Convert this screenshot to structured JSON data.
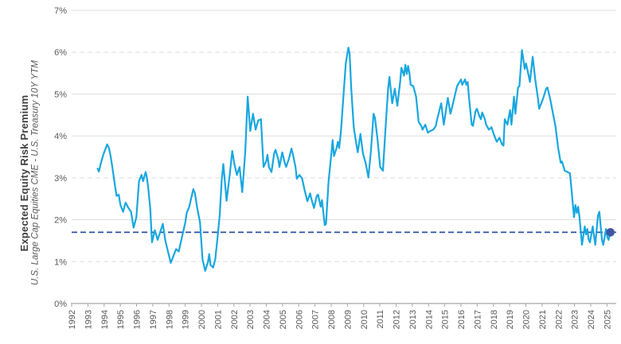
{
  "chart_data": {
    "type": "line",
    "title": "Expected Equity Risk Premium",
    "subtitle": "U.S. Large Cap Equities CME - U.S. Treasury 10Y YTM",
    "xlabel": "",
    "ylabel": "Expected Equity Risk Premium",
    "xlim": [
      1992,
      2025.57
    ],
    "ylim": [
      0,
      7
    ],
    "grid": "horizontal",
    "y_ticks": [
      0,
      1,
      2,
      3,
      4,
      5,
      6,
      7
    ],
    "y_tick_suffix": "%",
    "y_ticks_dashed": [
      1,
      3,
      6
    ],
    "x_ticks": [
      1992,
      1993,
      1994,
      1995,
      1996,
      1997,
      1998,
      1999,
      2000,
      2001,
      2002,
      2003,
      2004,
      2005,
      2006,
      2007,
      2008,
      2009,
      2010,
      2011,
      2012,
      2013,
      2014,
      2015,
      2016,
      2017,
      2018,
      2019,
      2020,
      2021,
      2022,
      2023,
      2024,
      2025
    ],
    "legend_position": "none",
    "colors": {
      "series": "#18a7e0",
      "reference": "#2b50a1",
      "marker": "#3f55a5",
      "grid": "#dcdddf",
      "axis": "#a6a8ab",
      "tick_text": "#58595b",
      "title_text": "#414042"
    },
    "reference_line": {
      "value": 1.7,
      "style": "dashed",
      "color": "#2b50a1"
    },
    "end_marker": {
      "x": 2025.21,
      "y": 1.7,
      "color": "#3f55a5"
    },
    "series": [
      {
        "name": "Expected Equity Risk Premium (U.S. Large Cap Equities CME - U.S. Treasury 10Y YTM)",
        "color": "#18a7e0",
        "points": [
          [
            1993.6,
            3.22
          ],
          [
            1993.68,
            3.15
          ],
          [
            1993.8,
            3.35
          ],
          [
            1993.95,
            3.55
          ],
          [
            1994.19,
            3.8
          ],
          [
            1994.3,
            3.71
          ],
          [
            1994.4,
            3.52
          ],
          [
            1994.52,
            3.23
          ],
          [
            1994.68,
            2.79
          ],
          [
            1994.77,
            2.57
          ],
          [
            1994.9,
            2.6
          ],
          [
            1995.01,
            2.35
          ],
          [
            1995.17,
            2.19
          ],
          [
            1995.33,
            2.41
          ],
          [
            1995.5,
            2.28
          ],
          [
            1995.66,
            2.19
          ],
          [
            1995.74,
            2.0
          ],
          [
            1995.82,
            1.81
          ],
          [
            1995.99,
            2.06
          ],
          [
            1996.15,
            2.92
          ],
          [
            1996.31,
            3.07
          ],
          [
            1996.4,
            2.92
          ],
          [
            1996.56,
            3.14
          ],
          [
            1996.64,
            3.01
          ],
          [
            1996.72,
            2.76
          ],
          [
            1996.85,
            2.25
          ],
          [
            1996.95,
            1.46
          ],
          [
            1997.13,
            1.75
          ],
          [
            1997.3,
            1.52
          ],
          [
            1997.62,
            1.9
          ],
          [
            1997.78,
            1.49
          ],
          [
            1998.11,
            0.97
          ],
          [
            1998.44,
            1.3
          ],
          [
            1998.6,
            1.24
          ],
          [
            1999.01,
            1.94
          ],
          [
            1999.09,
            2.16
          ],
          [
            1999.25,
            2.31
          ],
          [
            1999.5,
            2.73
          ],
          [
            1999.6,
            2.63
          ],
          [
            1999.74,
            2.28
          ],
          [
            1999.91,
            1.94
          ],
          [
            2000.07,
            1.05
          ],
          [
            2000.23,
            0.78
          ],
          [
            2000.4,
            0.99
          ],
          [
            2000.48,
            1.18
          ],
          [
            2000.56,
            0.92
          ],
          [
            2000.72,
            0.86
          ],
          [
            2000.85,
            1.05
          ],
          [
            2000.97,
            1.49
          ],
          [
            2001.13,
            2.12
          ],
          [
            2001.25,
            2.95
          ],
          [
            2001.35,
            3.33
          ],
          [
            2001.55,
            2.45
          ],
          [
            2001.75,
            3.1
          ],
          [
            2001.9,
            3.64
          ],
          [
            2002.03,
            3.33
          ],
          [
            2002.19,
            3.07
          ],
          [
            2002.35,
            3.26
          ],
          [
            2002.52,
            2.66
          ],
          [
            2002.7,
            3.6
          ],
          [
            2002.85,
            4.94
          ],
          [
            2003.01,
            4.12
          ],
          [
            2003.18,
            4.53
          ],
          [
            2003.34,
            4.15
          ],
          [
            2003.5,
            4.37
          ],
          [
            2003.67,
            4.4
          ],
          [
            2003.83,
            3.26
          ],
          [
            2003.99,
            3.39
          ],
          [
            2004.07,
            3.55
          ],
          [
            2004.16,
            3.26
          ],
          [
            2004.32,
            3.14
          ],
          [
            2004.48,
            3.58
          ],
          [
            2004.57,
            3.67
          ],
          [
            2004.73,
            3.45
          ],
          [
            2004.81,
            3.26
          ],
          [
            2004.98,
            3.61
          ],
          [
            2005.14,
            3.36
          ],
          [
            2005.22,
            3.26
          ],
          [
            2005.39,
            3.45
          ],
          [
            2005.55,
            3.7
          ],
          [
            2005.63,
            3.58
          ],
          [
            2005.8,
            3.26
          ],
          [
            2005.88,
            2.98
          ],
          [
            2006.04,
            3.07
          ],
          [
            2006.21,
            2.98
          ],
          [
            2006.37,
            2.69
          ],
          [
            2006.53,
            2.44
          ],
          [
            2006.7,
            2.63
          ],
          [
            2006.78,
            2.5
          ],
          [
            2006.94,
            2.28
          ],
          [
            2007.11,
            2.57
          ],
          [
            2007.19,
            2.6
          ],
          [
            2007.35,
            2.31
          ],
          [
            2007.43,
            2.47
          ],
          [
            2007.6,
            1.87
          ],
          [
            2007.68,
            1.9
          ],
          [
            2007.84,
            2.92
          ],
          [
            2008.01,
            3.58
          ],
          [
            2008.09,
            3.9
          ],
          [
            2008.17,
            3.52
          ],
          [
            2008.33,
            3.71
          ],
          [
            2008.41,
            3.86
          ],
          [
            2008.49,
            3.71
          ],
          [
            2008.6,
            4.1
          ],
          [
            2008.74,
            4.88
          ],
          [
            2008.9,
            5.73
          ],
          [
            2009.06,
            6.11
          ],
          [
            2009.14,
            5.95
          ],
          [
            2009.23,
            5.16
          ],
          [
            2009.39,
            4.21
          ],
          [
            2009.55,
            3.8
          ],
          [
            2009.64,
            3.61
          ],
          [
            2009.8,
            4.05
          ],
          [
            2009.96,
            3.58
          ],
          [
            2010.12,
            3.36
          ],
          [
            2010.29,
            3.01
          ],
          [
            2010.45,
            3.64
          ],
          [
            2010.61,
            4.53
          ],
          [
            2010.7,
            4.43
          ],
          [
            2010.86,
            3.9
          ],
          [
            2011.02,
            3.26
          ],
          [
            2011.19,
            3.17
          ],
          [
            2011.35,
            4.21
          ],
          [
            2011.51,
            5.13
          ],
          [
            2011.59,
            5.41
          ],
          [
            2011.76,
            4.78
          ],
          [
            2011.92,
            5.13
          ],
          [
            2012.08,
            4.72
          ],
          [
            2012.25,
            5.29
          ],
          [
            2012.33,
            5.63
          ],
          [
            2012.49,
            5.44
          ],
          [
            2012.57,
            5.7
          ],
          [
            2012.66,
            5.48
          ],
          [
            2012.74,
            5.67
          ],
          [
            2012.82,
            5.51
          ],
          [
            2012.9,
            5.22
          ],
          [
            2013.06,
            5.19
          ],
          [
            2013.23,
            4.94
          ],
          [
            2013.39,
            4.34
          ],
          [
            2013.55,
            4.24
          ],
          [
            2013.63,
            4.15
          ],
          [
            2013.8,
            4.27
          ],
          [
            2013.96,
            4.08
          ],
          [
            2014.12,
            4.12
          ],
          [
            2014.29,
            4.15
          ],
          [
            2014.45,
            4.24
          ],
          [
            2014.53,
            4.4
          ],
          [
            2014.78,
            4.78
          ],
          [
            2014.94,
            4.27
          ],
          [
            2015.19,
            4.91
          ],
          [
            2015.35,
            4.53
          ],
          [
            2015.43,
            4.65
          ],
          [
            2015.76,
            5.19
          ],
          [
            2016.0,
            5.35
          ],
          [
            2016.08,
            5.22
          ],
          [
            2016.25,
            5.35
          ],
          [
            2016.33,
            5.22
          ],
          [
            2016.41,
            5.29
          ],
          [
            2016.49,
            4.94
          ],
          [
            2016.66,
            4.27
          ],
          [
            2016.74,
            4.24
          ],
          [
            2016.9,
            4.59
          ],
          [
            2016.98,
            4.65
          ],
          [
            2017.15,
            4.46
          ],
          [
            2017.23,
            4.4
          ],
          [
            2017.31,
            4.56
          ],
          [
            2017.47,
            4.4
          ],
          [
            2017.55,
            4.27
          ],
          [
            2017.72,
            4.15
          ],
          [
            2017.88,
            4.21
          ],
          [
            2018.04,
            4.02
          ],
          [
            2018.21,
            3.86
          ],
          [
            2018.37,
            3.96
          ],
          [
            2018.53,
            3.8
          ],
          [
            2018.62,
            3.77
          ],
          [
            2018.7,
            4.4
          ],
          [
            2018.86,
            4.27
          ],
          [
            2019.03,
            4.62
          ],
          [
            2019.11,
            4.27
          ],
          [
            2019.27,
            4.94
          ],
          [
            2019.35,
            4.53
          ],
          [
            2019.52,
            5.16
          ],
          [
            2019.6,
            5.19
          ],
          [
            2019.76,
            6.05
          ],
          [
            2019.93,
            5.6
          ],
          [
            2020.01,
            5.73
          ],
          [
            2020.17,
            5.44
          ],
          [
            2020.25,
            5.29
          ],
          [
            2020.42,
            5.89
          ],
          [
            2020.58,
            5.35
          ],
          [
            2020.74,
            4.91
          ],
          [
            2020.82,
            4.65
          ],
          [
            2021.07,
            4.9
          ],
          [
            2021.25,
            5.13
          ],
          [
            2021.33,
            5.16
          ],
          [
            2021.5,
            4.88
          ],
          [
            2021.66,
            4.56
          ],
          [
            2021.82,
            4.24
          ],
          [
            2021.99,
            3.71
          ],
          [
            2022.15,
            3.36
          ],
          [
            2022.23,
            3.39
          ],
          [
            2022.4,
            3.17
          ],
          [
            2022.56,
            3.14
          ],
          [
            2022.72,
            3.11
          ],
          [
            2022.81,
            2.73
          ],
          [
            2022.97,
            2.06
          ],
          [
            2023.05,
            2.35
          ],
          [
            2023.14,
            2.16
          ],
          [
            2023.22,
            2.31
          ],
          [
            2023.3,
            2.09
          ],
          [
            2023.46,
            1.4
          ],
          [
            2023.63,
            1.84
          ],
          [
            2023.71,
            1.65
          ],
          [
            2023.79,
            1.78
          ],
          [
            2023.87,
            1.52
          ],
          [
            2023.95,
            1.46
          ],
          [
            2024.12,
            1.84
          ],
          [
            2024.28,
            1.4
          ],
          [
            2024.44,
            2.09
          ],
          [
            2024.53,
            2.19
          ],
          [
            2024.69,
            1.52
          ],
          [
            2024.77,
            1.4
          ],
          [
            2024.94,
            1.78
          ],
          [
            2025.02,
            1.59
          ],
          [
            2025.1,
            1.52
          ],
          [
            2025.21,
            1.7
          ]
        ]
      }
    ]
  }
}
